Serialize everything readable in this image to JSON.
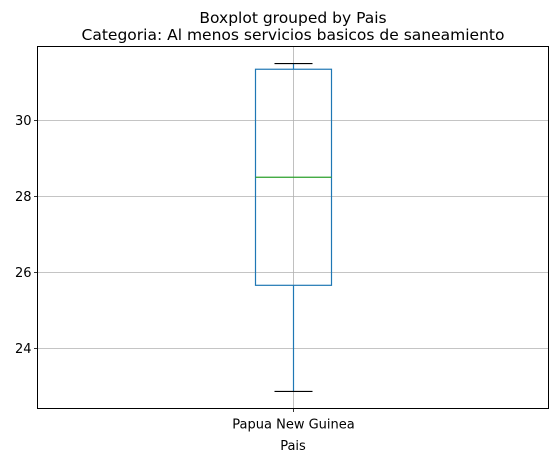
{
  "chart_data": {
    "type": "box",
    "suptitle": "Boxplot grouped by Pais",
    "title": "Categoria: Al menos servicios basicos de saneamiento",
    "xlabel": "Pais",
    "ylabel": "",
    "categories": [
      "Papua New Guinea"
    ],
    "boxes": [
      {
        "category": "Papua New Guinea",
        "whisker_low": 22.85,
        "q1": 25.65,
        "median": 28.5,
        "q3": 31.35,
        "whisker_high": 31.5
      }
    ],
    "yticks": [
      24,
      26,
      28,
      30
    ],
    "ylim": [
      22.4,
      31.95
    ],
    "grid": true,
    "colors": {
      "box": "#1f77b4",
      "median": "#2ca02c",
      "caps": "#000000",
      "grid": "#b0b0b0"
    }
  }
}
